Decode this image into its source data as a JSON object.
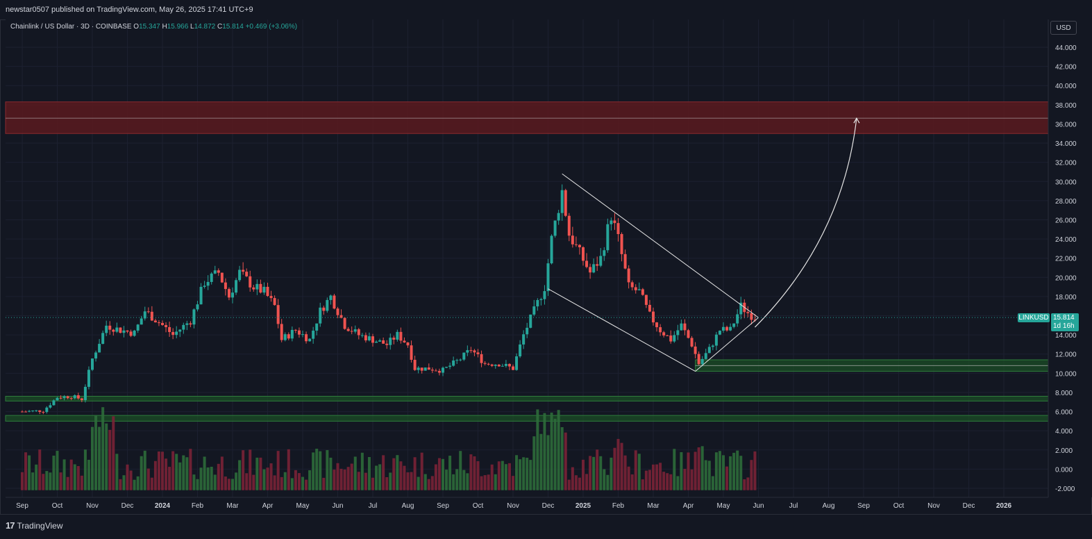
{
  "header": {
    "publisher": "newstar0507 published on TradingView.com, May 26, 2025 17:41 UTC+9"
  },
  "legend": {
    "symbol": "Chainlink / US Dollar · 3D · COINBASE",
    "o_label": "O",
    "o": "15.347",
    "h_label": "H",
    "h": "15.966",
    "l_label": "L",
    "l": "14.872",
    "c_label": "C",
    "c": "15.814",
    "change": "+0.469 (+3.06%)"
  },
  "price_scale": {
    "currency_button": "USD",
    "ticker": "LINKUSD",
    "last_price": "15.814",
    "countdown": "1d 16h"
  },
  "footer": {
    "brand": "TradingView"
  },
  "chart_data": {
    "type": "candlestick",
    "symbol": "LINKUSD",
    "ylim": [
      -2,
      44
    ],
    "y_ticks": [
      "44.000",
      "42.000",
      "40.000",
      "38.000",
      "36.000",
      "34.000",
      "32.000",
      "30.000",
      "28.000",
      "26.000",
      "24.000",
      "22.000",
      "20.000",
      "18.000",
      "16.000",
      "14.000",
      "12.000",
      "10.000",
      "8.000",
      "6.000",
      "4.000",
      "2.000",
      "0.000",
      "-2.000"
    ],
    "x_ticks": [
      "Sep",
      "Oct",
      "Nov",
      "Dec",
      "2024",
      "Feb",
      "Mar",
      "Apr",
      "May",
      "Jun",
      "Jul",
      "Aug",
      "Sep",
      "Oct",
      "Nov",
      "Dec",
      "2025",
      "Feb",
      "Mar",
      "Apr",
      "May",
      "Jun",
      "Jul",
      "Aug",
      "Sep",
      "Oct",
      "Nov",
      "Dec",
      "2026"
    ],
    "x_tick_months": [
      0,
      1,
      2,
      3,
      4,
      5,
      6,
      7,
      8,
      9,
      10,
      11,
      12,
      13,
      14,
      15,
      16,
      17,
      18,
      19,
      20,
      21,
      22,
      23,
      24,
      25,
      26,
      27,
      28
    ],
    "monthly_path": [
      {
        "m": 0.0,
        "p": 6.0
      },
      {
        "m": 0.6,
        "p": 6.1
      },
      {
        "m": 1.0,
        "p": 7.5
      },
      {
        "m": 1.4,
        "p": 7.6
      },
      {
        "m": 1.7,
        "p": 7.3
      },
      {
        "m": 2.0,
        "p": 11.5
      },
      {
        "m": 2.4,
        "p": 15.0
      },
      {
        "m": 2.8,
        "p": 14.5
      },
      {
        "m": 3.2,
        "p": 14.2
      },
      {
        "m": 3.5,
        "p": 16.5
      },
      {
        "m": 4.0,
        "p": 15.0
      },
      {
        "m": 4.3,
        "p": 14.0
      },
      {
        "m": 4.8,
        "p": 15.5
      },
      {
        "m": 5.2,
        "p": 19.5
      },
      {
        "m": 5.6,
        "p": 20.5
      },
      {
        "m": 5.9,
        "p": 18.0
      },
      {
        "m": 6.2,
        "p": 20.5
      },
      {
        "m": 6.6,
        "p": 19.0
      },
      {
        "m": 6.9,
        "p": 18.5
      },
      {
        "m": 7.2,
        "p": 17.0
      },
      {
        "m": 7.4,
        "p": 13.5
      },
      {
        "m": 7.8,
        "p": 14.5
      },
      {
        "m": 8.2,
        "p": 13.5
      },
      {
        "m": 8.5,
        "p": 16.5
      },
      {
        "m": 8.8,
        "p": 18.0
      },
      {
        "m": 9.2,
        "p": 15.0
      },
      {
        "m": 9.6,
        "p": 14.0
      },
      {
        "m": 10.0,
        "p": 13.5
      },
      {
        "m": 10.4,
        "p": 13.0
      },
      {
        "m": 10.7,
        "p": 14.0
      },
      {
        "m": 11.0,
        "p": 13.0
      },
      {
        "m": 11.2,
        "p": 10.5
      },
      {
        "m": 11.6,
        "p": 10.5
      },
      {
        "m": 12.0,
        "p": 10.3
      },
      {
        "m": 12.5,
        "p": 11.5
      },
      {
        "m": 12.8,
        "p": 12.5
      },
      {
        "m": 13.2,
        "p": 11.0
      },
      {
        "m": 13.6,
        "p": 11.0
      },
      {
        "m": 14.0,
        "p": 10.5
      },
      {
        "m": 14.3,
        "p": 14.0
      },
      {
        "m": 14.6,
        "p": 16.5
      },
      {
        "m": 14.9,
        "p": 19.0
      },
      {
        "m": 15.1,
        "p": 24.0
      },
      {
        "m": 15.4,
        "p": 29.0
      },
      {
        "m": 15.6,
        "p": 24.5
      },
      {
        "m": 15.9,
        "p": 22.5
      },
      {
        "m": 16.2,
        "p": 20.5
      },
      {
        "m": 16.5,
        "p": 22.0
      },
      {
        "m": 16.8,
        "p": 26.5
      },
      {
        "m": 17.0,
        "p": 24.0
      },
      {
        "m": 17.3,
        "p": 19.0
      },
      {
        "m": 17.6,
        "p": 18.5
      },
      {
        "m": 17.9,
        "p": 16.0
      },
      {
        "m": 18.2,
        "p": 14.5
      },
      {
        "m": 18.5,
        "p": 13.5
      },
      {
        "m": 18.8,
        "p": 15.0
      },
      {
        "m": 19.1,
        "p": 13.0
      },
      {
        "m": 19.3,
        "p": 11.0
      },
      {
        "m": 19.6,
        "p": 12.5
      },
      {
        "m": 19.9,
        "p": 14.5
      },
      {
        "m": 20.2,
        "p": 14.5
      },
      {
        "m": 20.5,
        "p": 17.0
      },
      {
        "m": 20.7,
        "p": 16.3
      },
      {
        "m": 20.9,
        "p": 15.8
      }
    ],
    "volume_scale_note": "volume bars have no printed axis",
    "zones": [
      {
        "kind": "resistance",
        "low": 35.0,
        "high": 38.3,
        "mid": 36.6,
        "color": "#5a1a1e"
      },
      {
        "kind": "support",
        "low": 10.2,
        "high": 11.4,
        "mid": 10.8,
        "color": "#1b4d25"
      },
      {
        "kind": "support",
        "low": 7.1,
        "high": 7.6,
        "color": "#1b4d25"
      },
      {
        "kind": "support",
        "low": 5.0,
        "high": 5.6,
        "color": "#1b4d25"
      }
    ],
    "drawings": {
      "wedge_upper": [
        {
          "m": 15.4,
          "p": 30.8
        },
        {
          "m": 21.0,
          "p": 15.8
        }
      ],
      "wedge_lower": [
        {
          "m": 15.0,
          "p": 18.8
        },
        {
          "m": 19.2,
          "p": 10.2
        }
      ],
      "wedge_apex": [
        {
          "m": 19.2,
          "p": 10.2
        },
        {
          "m": 21.0,
          "p": 15.8
        }
      ],
      "projection_target": 36.6
    },
    "colors": {
      "up": "#26a69a",
      "down": "#ef5350",
      "vol_up": "#2e6b3a",
      "vol_down": "#7a2236",
      "grid": "#1c2030",
      "axis_text": "#d1d4dc",
      "last_price": "#26a69a"
    }
  }
}
